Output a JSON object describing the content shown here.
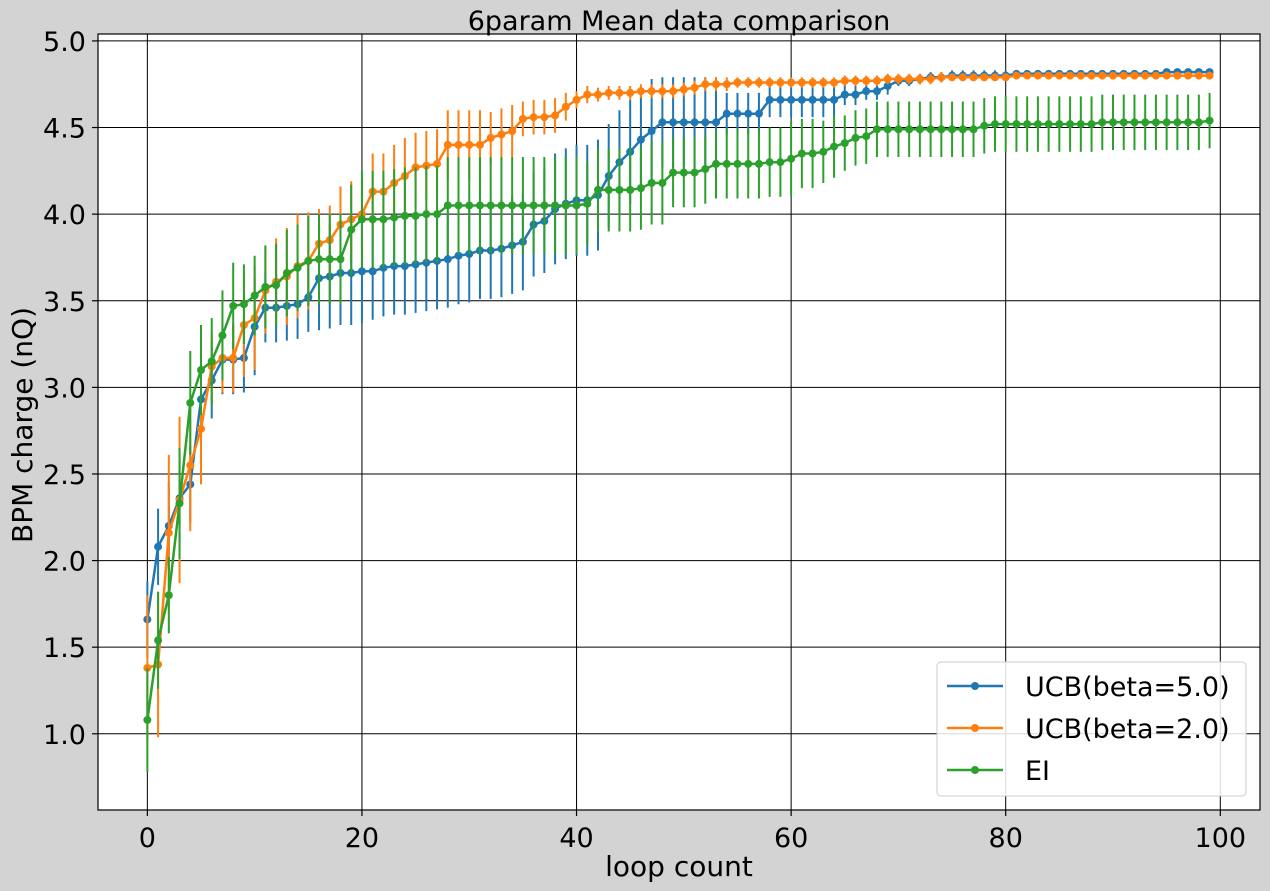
{
  "chart_data": {
    "type": "line",
    "title": "6param Mean data comparison",
    "xlabel": "loop count",
    "ylabel": "BPM charge (nQ)",
    "xlim": [
      -4.6,
      103.7
    ],
    "ylim": [
      0.56,
      5.04
    ],
    "xticks": [
      0,
      20,
      40,
      60,
      80,
      100
    ],
    "xtick_labels": [
      "0",
      "20",
      "40",
      "60",
      "80",
      "100"
    ],
    "yticks": [
      1.0,
      1.5,
      2.0,
      2.5,
      3.0,
      3.5,
      4.0,
      4.5,
      5.0
    ],
    "ytick_labels": [
      "1.0",
      "1.5",
      "2.0",
      "2.5",
      "3.0",
      "3.5",
      "4.0",
      "4.5",
      "5.0"
    ],
    "grid": true,
    "legend_position": "lower-right",
    "error_bars": true,
    "x": [
      0,
      1,
      2,
      3,
      4,
      5,
      6,
      7,
      8,
      9,
      10,
      11,
      12,
      13,
      14,
      15,
      16,
      17,
      18,
      19,
      20,
      21,
      22,
      23,
      24,
      25,
      26,
      27,
      28,
      29,
      30,
      31,
      32,
      33,
      34,
      35,
      36,
      37,
      38,
      39,
      40,
      41,
      42,
      43,
      44,
      45,
      46,
      47,
      48,
      49,
      50,
      51,
      52,
      53,
      54,
      55,
      56,
      57,
      58,
      59,
      60,
      61,
      62,
      63,
      64,
      65,
      66,
      67,
      68,
      69,
      70,
      71,
      72,
      73,
      74,
      75,
      76,
      77,
      78,
      79,
      80,
      81,
      82,
      83,
      84,
      85,
      86,
      87,
      88,
      89,
      90,
      91,
      92,
      93,
      94,
      95,
      96,
      97,
      98,
      99
    ],
    "series": [
      {
        "name": "UCB(beta=5.0)",
        "color": "#1f77b4",
        "values": [
          1.66,
          2.08,
          2.2,
          2.36,
          2.44,
          2.93,
          3.04,
          3.16,
          3.16,
          3.17,
          3.35,
          3.46,
          3.46,
          3.47,
          3.48,
          3.52,
          3.63,
          3.64,
          3.66,
          3.66,
          3.67,
          3.67,
          3.69,
          3.7,
          3.7,
          3.71,
          3.72,
          3.73,
          3.74,
          3.76,
          3.77,
          3.79,
          3.79,
          3.8,
          3.82,
          3.84,
          3.94,
          3.96,
          4.03,
          4.06,
          4.08,
          4.08,
          4.11,
          4.22,
          4.3,
          4.36,
          4.43,
          4.48,
          4.53,
          4.53,
          4.53,
          4.53,
          4.53,
          4.53,
          4.58,
          4.58,
          4.58,
          4.58,
          4.66,
          4.66,
          4.66,
          4.66,
          4.66,
          4.66,
          4.66,
          4.69,
          4.69,
          4.71,
          4.71,
          4.74,
          4.77,
          4.77,
          4.78,
          4.79,
          4.79,
          4.8,
          4.8,
          4.8,
          4.8,
          4.8,
          4.8,
          4.81,
          4.81,
          4.81,
          4.81,
          4.81,
          4.81,
          4.81,
          4.81,
          4.81,
          4.81,
          4.81,
          4.81,
          4.81,
          4.81,
          4.82,
          4.82,
          4.82,
          4.82,
          4.82
        ],
        "errors": [
          0.22,
          0.22,
          0.25,
          0.25,
          0.22,
          0.25,
          0.22,
          0.2,
          0.2,
          0.2,
          0.28,
          0.2,
          0.2,
          0.2,
          0.2,
          0.2,
          0.3,
          0.3,
          0.3,
          0.3,
          0.3,
          0.28,
          0.28,
          0.28,
          0.28,
          0.28,
          0.28,
          0.28,
          0.28,
          0.28,
          0.28,
          0.28,
          0.28,
          0.28,
          0.28,
          0.28,
          0.3,
          0.3,
          0.32,
          0.32,
          0.32,
          0.32,
          0.32,
          0.3,
          0.3,
          0.3,
          0.3,
          0.3,
          0.26,
          0.26,
          0.26,
          0.26,
          0.26,
          0.26,
          0.12,
          0.12,
          0.12,
          0.12,
          0.1,
          0.1,
          0.1,
          0.1,
          0.1,
          0.1,
          0.1,
          0.06,
          0.06,
          0.05,
          0.05,
          0.05,
          0.03,
          0.03,
          0.03,
          0.03,
          0.03,
          0.03,
          0.03,
          0.03,
          0.03,
          0.03,
          0.03,
          0.02,
          0.02,
          0.02,
          0.02,
          0.02,
          0.02,
          0.02,
          0.02,
          0.02,
          0.02,
          0.02,
          0.02,
          0.02,
          0.02,
          0.02,
          0.02,
          0.02,
          0.02,
          0.02
        ]
      },
      {
        "name": "UCB(beta=2.0)",
        "color": "#ff7f0e",
        "values": [
          1.38,
          1.4,
          2.16,
          2.35,
          2.55,
          2.76,
          3.12,
          3.17,
          3.17,
          3.36,
          3.4,
          3.56,
          3.61,
          3.64,
          3.7,
          3.73,
          3.83,
          3.85,
          3.94,
          3.97,
          4.0,
          4.13,
          4.13,
          4.18,
          4.22,
          4.27,
          4.28,
          4.29,
          4.4,
          4.4,
          4.4,
          4.4,
          4.44,
          4.46,
          4.48,
          4.55,
          4.56,
          4.56,
          4.57,
          4.62,
          4.66,
          4.69,
          4.69,
          4.7,
          4.7,
          4.7,
          4.71,
          4.71,
          4.71,
          4.71,
          4.72,
          4.73,
          4.75,
          4.75,
          4.75,
          4.76,
          4.76,
          4.76,
          4.76,
          4.76,
          4.76,
          4.76,
          4.76,
          4.76,
          4.76,
          4.77,
          4.77,
          4.77,
          4.77,
          4.78,
          4.78,
          4.78,
          4.78,
          4.78,
          4.79,
          4.79,
          4.79,
          4.79,
          4.79,
          4.79,
          4.79,
          4.8,
          4.8,
          4.8,
          4.8,
          4.8,
          4.8,
          4.8,
          4.8,
          4.8,
          4.8,
          4.8,
          4.8,
          4.8,
          4.8,
          4.8,
          4.8,
          4.8,
          4.8,
          4.8
        ],
        "errors": [
          0.42,
          0.42,
          0.45,
          0.48,
          0.38,
          0.32,
          0.2,
          0.2,
          0.2,
          0.3,
          0.3,
          0.25,
          0.25,
          0.28,
          0.3,
          0.28,
          0.2,
          0.2,
          0.22,
          0.22,
          0.2,
          0.22,
          0.22,
          0.22,
          0.22,
          0.2,
          0.2,
          0.2,
          0.2,
          0.2,
          0.2,
          0.2,
          0.15,
          0.15,
          0.15,
          0.1,
          0.1,
          0.1,
          0.1,
          0.08,
          0.05,
          0.05,
          0.04,
          0.04,
          0.04,
          0.04,
          0.04,
          0.04,
          0.04,
          0.04,
          0.04,
          0.04,
          0.04,
          0.04,
          0.04,
          0.03,
          0.03,
          0.03,
          0.03,
          0.03,
          0.03,
          0.03,
          0.03,
          0.03,
          0.03,
          0.03,
          0.03,
          0.03,
          0.03,
          0.03,
          0.03,
          0.03,
          0.03,
          0.03,
          0.03,
          0.02,
          0.02,
          0.02,
          0.02,
          0.02,
          0.02,
          0.02,
          0.02,
          0.02,
          0.02,
          0.02,
          0.02,
          0.02,
          0.02,
          0.02,
          0.02,
          0.02,
          0.02,
          0.02,
          0.02,
          0.02,
          0.02,
          0.02,
          0.02,
          0.02
        ]
      },
      {
        "name": "EI",
        "color": "#2ca02c",
        "values": [
          1.08,
          1.54,
          1.8,
          2.33,
          2.91,
          3.1,
          3.15,
          3.3,
          3.47,
          3.48,
          3.53,
          3.58,
          3.59,
          3.66,
          3.69,
          3.73,
          3.74,
          3.74,
          3.74,
          3.91,
          3.97,
          3.97,
          3.97,
          3.98,
          3.99,
          3.99,
          4.0,
          4.0,
          4.05,
          4.05,
          4.05,
          4.05,
          4.05,
          4.05,
          4.05,
          4.05,
          4.05,
          4.05,
          4.05,
          4.05,
          4.05,
          4.06,
          4.14,
          4.14,
          4.14,
          4.14,
          4.15,
          4.18,
          4.18,
          4.24,
          4.24,
          4.24,
          4.26,
          4.29,
          4.29,
          4.29,
          4.29,
          4.29,
          4.3,
          4.3,
          4.32,
          4.35,
          4.35,
          4.36,
          4.39,
          4.41,
          4.44,
          4.45,
          4.49,
          4.49,
          4.49,
          4.49,
          4.49,
          4.49,
          4.49,
          4.49,
          4.49,
          4.49,
          4.51,
          4.52,
          4.52,
          4.52,
          4.52,
          4.52,
          4.52,
          4.52,
          4.52,
          4.52,
          4.52,
          4.53,
          4.53,
          4.53,
          4.53,
          4.53,
          4.53,
          4.53,
          4.53,
          4.53,
          4.53,
          4.54
        ],
        "errors": [
          0.3,
          0.28,
          0.22,
          0.32,
          0.3,
          0.26,
          0.25,
          0.26,
          0.25,
          0.23,
          0.23,
          0.24,
          0.24,
          0.25,
          0.25,
          0.26,
          0.26,
          0.26,
          0.26,
          0.26,
          0.28,
          0.28,
          0.28,
          0.28,
          0.28,
          0.28,
          0.28,
          0.28,
          0.28,
          0.28,
          0.28,
          0.28,
          0.28,
          0.28,
          0.28,
          0.28,
          0.28,
          0.28,
          0.28,
          0.28,
          0.28,
          0.24,
          0.24,
          0.24,
          0.24,
          0.24,
          0.24,
          0.24,
          0.24,
          0.2,
          0.2,
          0.2,
          0.2,
          0.2,
          0.2,
          0.2,
          0.2,
          0.2,
          0.2,
          0.2,
          0.22,
          0.2,
          0.2,
          0.18,
          0.18,
          0.16,
          0.16,
          0.16,
          0.16,
          0.16,
          0.16,
          0.16,
          0.16,
          0.16,
          0.16,
          0.16,
          0.16,
          0.16,
          0.16,
          0.16,
          0.16,
          0.16,
          0.16,
          0.16,
          0.16,
          0.16,
          0.16,
          0.16,
          0.16,
          0.16,
          0.16,
          0.16,
          0.16,
          0.16,
          0.16,
          0.16,
          0.16,
          0.16,
          0.16,
          0.16
        ]
      }
    ]
  }
}
